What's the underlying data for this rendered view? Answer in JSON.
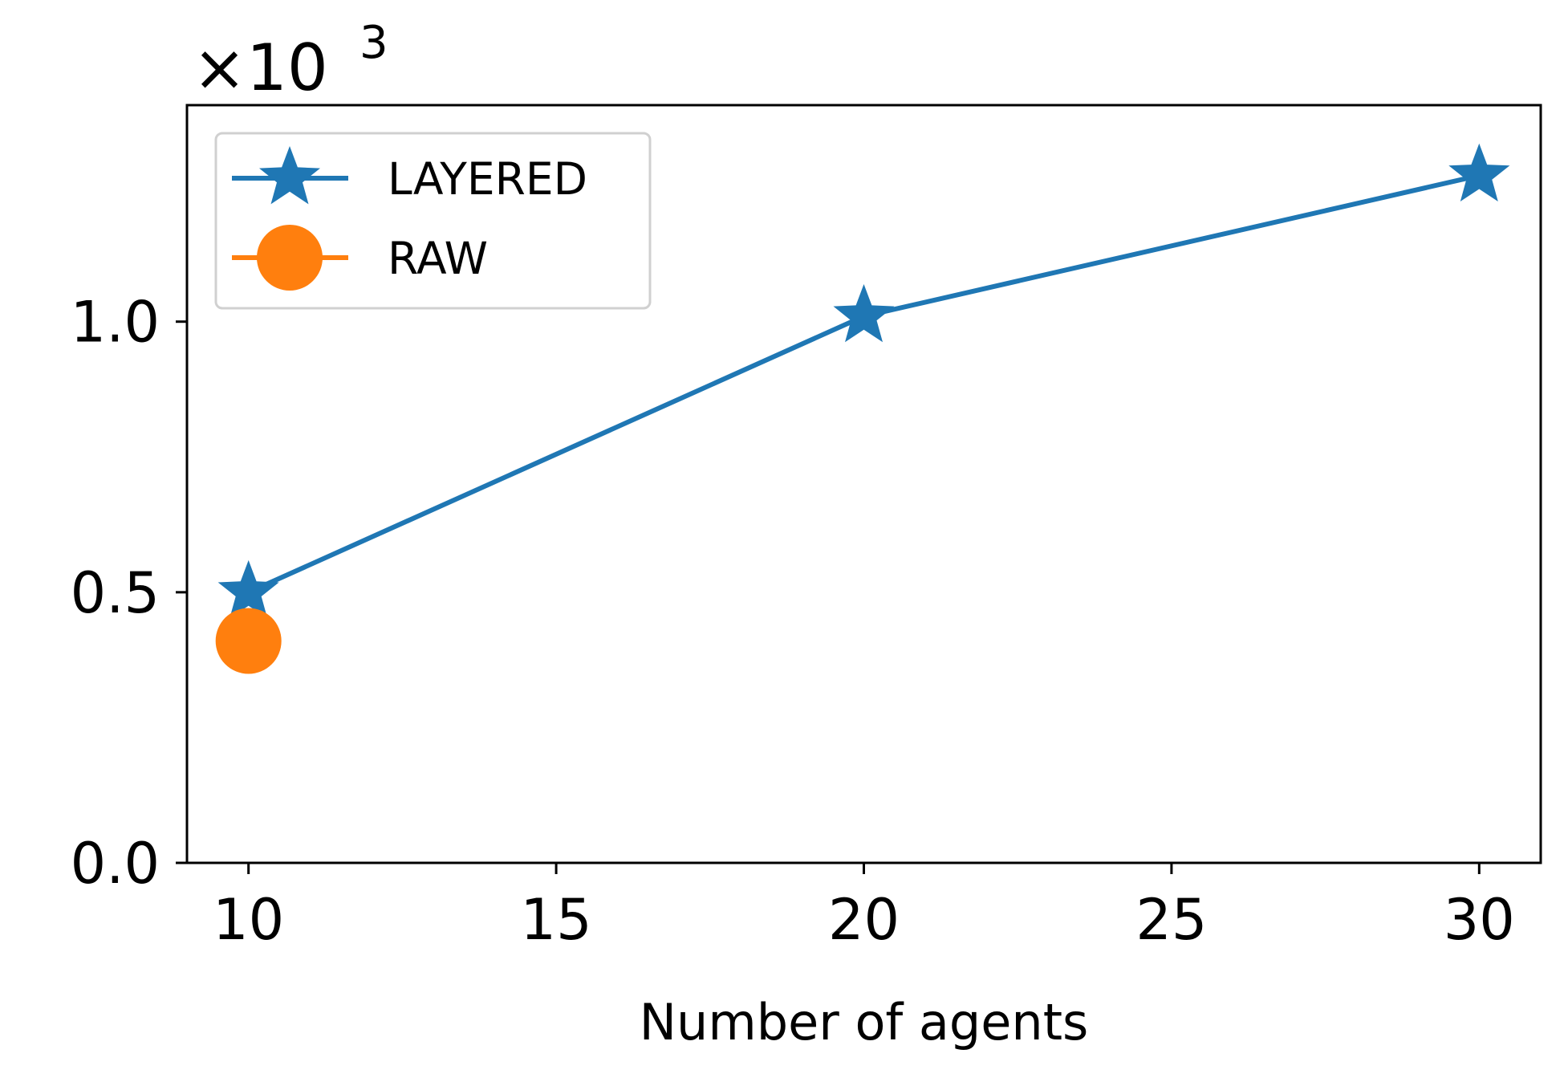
{
  "chart_data": {
    "type": "line",
    "xlabel": "Number of agents",
    "ylabel": "",
    "y_offset_text": {
      "base": "×10",
      "exponent": "3"
    },
    "xlim": [
      9,
      31
    ],
    "ylim": [
      0,
      1.4
    ],
    "xticks": [
      10,
      15,
      20,
      25,
      30
    ],
    "xtick_labels": [
      "10",
      "15",
      "20",
      "25",
      "30"
    ],
    "yticks": [
      0.0,
      0.5,
      1.0
    ],
    "ytick_labels": [
      "0.0",
      "0.5",
      "1.0"
    ],
    "grid": false,
    "legend": {
      "placement": "upper-left"
    },
    "series": [
      {
        "name": "LAYERED",
        "color": "#1f77b4",
        "marker": "star",
        "x": [
          10,
          20,
          30
        ],
        "y": [
          0.5,
          1.01,
          1.27
        ]
      },
      {
        "name": "RAW",
        "color": "#ff7f0e",
        "marker": "circle",
        "x": [
          10
        ],
        "y": [
          0.41
        ]
      }
    ]
  }
}
